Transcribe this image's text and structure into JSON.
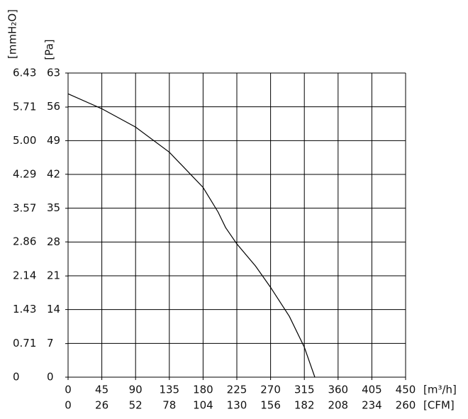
{
  "chart_data": {
    "type": "line",
    "x_label": "[m³/h]",
    "x2_label": "[CFM]",
    "y_label": "[Pa]",
    "y2_label": "[mmH₂O]",
    "xlim": [
      0,
      450
    ],
    "xticks": [
      0,
      45,
      90,
      135,
      180,
      225,
      270,
      315,
      360,
      405,
      450
    ],
    "x2lim": [
      0,
      260
    ],
    "x2ticks": [
      0,
      26,
      52,
      78,
      104,
      130,
      156,
      182,
      208,
      234,
      260
    ],
    "ylim": [
      0,
      63
    ],
    "yticks": [
      0,
      7,
      14,
      21,
      28,
      35,
      42,
      49,
      56,
      63
    ],
    "y2lim": [
      0,
      6.43
    ],
    "y2ticks": [
      0,
      0.71,
      1.43,
      2.14,
      2.86,
      3.57,
      4.29,
      {
        "value": 5,
        "label": "5.00"
      },
      5.71,
      6.43
    ],
    "grid": true,
    "series": [
      {
        "color": "#000000",
        "x": [
          0,
          45,
          90,
          135,
          180,
          200,
          210,
          225,
          250,
          270,
          295,
          315,
          329
        ],
        "values": [
          58.7,
          55.6,
          51.8,
          46.6,
          39.3,
          34.2,
          31,
          27.6,
          23,
          18.6,
          12.6,
          6.2,
          0
        ]
      }
    ]
  }
}
